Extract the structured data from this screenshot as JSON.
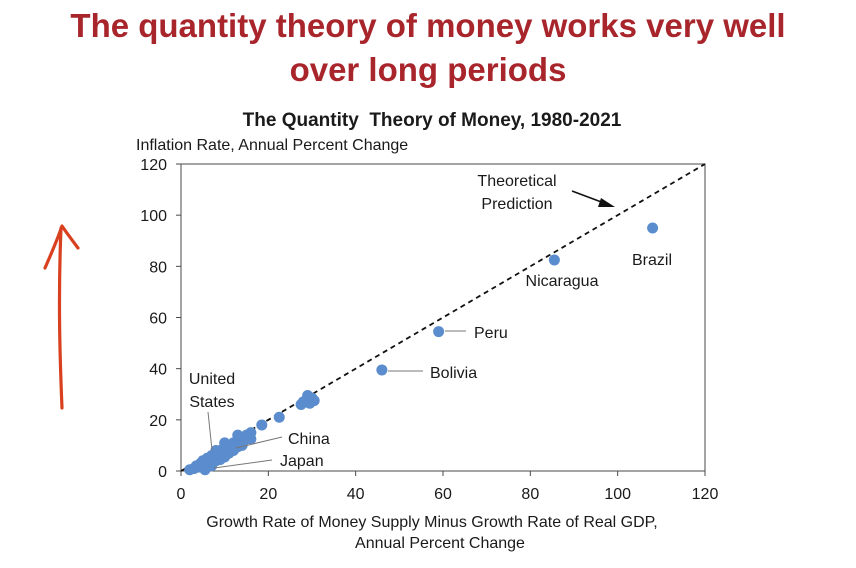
{
  "slide": {
    "title_line1": "The quantity theory of money works very well",
    "title_line2": "over long periods"
  },
  "colors": {
    "title": "#a8252b",
    "points": "#5b8ccd",
    "annotation_arrow": "#d9401f"
  },
  "annotation": {
    "icon": "hand-drawn-up-arrow-icon"
  },
  "chart_data": {
    "type": "scatter",
    "title": "The Quantity  Theory of Money, 1980-2021",
    "ylabel": "Inflation Rate, Annual Percent Change",
    "xlabel_line1": "Growth Rate of Money Supply Minus Growth Rate of Real GDP,",
    "xlabel_line2": "Annual Percent Change",
    "xlim": [
      0,
      120
    ],
    "ylim": [
      0,
      120
    ],
    "x_ticks": [
      "0",
      "20",
      "40",
      "60",
      "80",
      "100",
      "120"
    ],
    "y_ticks": [
      "0",
      "20",
      "40",
      "60",
      "80",
      "100",
      "120"
    ],
    "grid": false,
    "reference_line": {
      "label_line1": "Theoretical",
      "label_line2": "Prediction",
      "from": [
        0,
        0
      ],
      "to": [
        120,
        120
      ],
      "style": "dashed"
    },
    "labeled_points": [
      {
        "label": "Brazil",
        "x": 108,
        "y": 95
      },
      {
        "label": "Nicaragua",
        "x": 85.5,
        "y": 82.5
      },
      {
        "label": "Peru",
        "x": 59,
        "y": 54.5
      },
      {
        "label": "Bolivia",
        "x": 46,
        "y": 39.5
      },
      {
        "label": "China",
        "x": 12.5,
        "y": 9.5
      },
      {
        "label": "Japan",
        "x": 5.5,
        "y": 0.5
      },
      {
        "label_line1": "United",
        "label_line2": "States",
        "x": 6.5,
        "y": 3.5
      }
    ],
    "points": [
      [
        2,
        0.5
      ],
      [
        3,
        1
      ],
      [
        3.5,
        2
      ],
      [
        4,
        1.5
      ],
      [
        4.5,
        3
      ],
      [
        5,
        2.5
      ],
      [
        5,
        4
      ],
      [
        6,
        3
      ],
      [
        6,
        5
      ],
      [
        6.5,
        4.5
      ],
      [
        7,
        3.5
      ],
      [
        7,
        6
      ],
      [
        7.5,
        5
      ],
      [
        8,
        4
      ],
      [
        8,
        7
      ],
      [
        8.5,
        5.5
      ],
      [
        9,
        6
      ],
      [
        9,
        8
      ],
      [
        9.5,
        7
      ],
      [
        10,
        5.5
      ],
      [
        10,
        9
      ],
      [
        10.5,
        8
      ],
      [
        11,
        7
      ],
      [
        11,
        10
      ],
      [
        11.5,
        9
      ],
      [
        12,
        8
      ],
      [
        12,
        11
      ],
      [
        12.5,
        10
      ],
      [
        13,
        9.5
      ],
      [
        13,
        12
      ],
      [
        13.5,
        11
      ],
      [
        14,
        13
      ],
      [
        14.5,
        12
      ],
      [
        15,
        14
      ],
      [
        15.5,
        13
      ],
      [
        16,
        12.5
      ],
      [
        16,
        15
      ],
      [
        8,
        8
      ],
      [
        9,
        4.5
      ],
      [
        7,
        2
      ],
      [
        10,
        11
      ],
      [
        14,
        10
      ],
      [
        13,
        14
      ],
      [
        18.5,
        18
      ],
      [
        22.5,
        21
      ],
      [
        27.5,
        26
      ],
      [
        28.5,
        27
      ],
      [
        29,
        28
      ],
      [
        30,
        28.5
      ],
      [
        29.5,
        26.5
      ],
      [
        30.5,
        27.5
      ],
      [
        29,
        29.5
      ],
      [
        28,
        27
      ]
    ]
  }
}
